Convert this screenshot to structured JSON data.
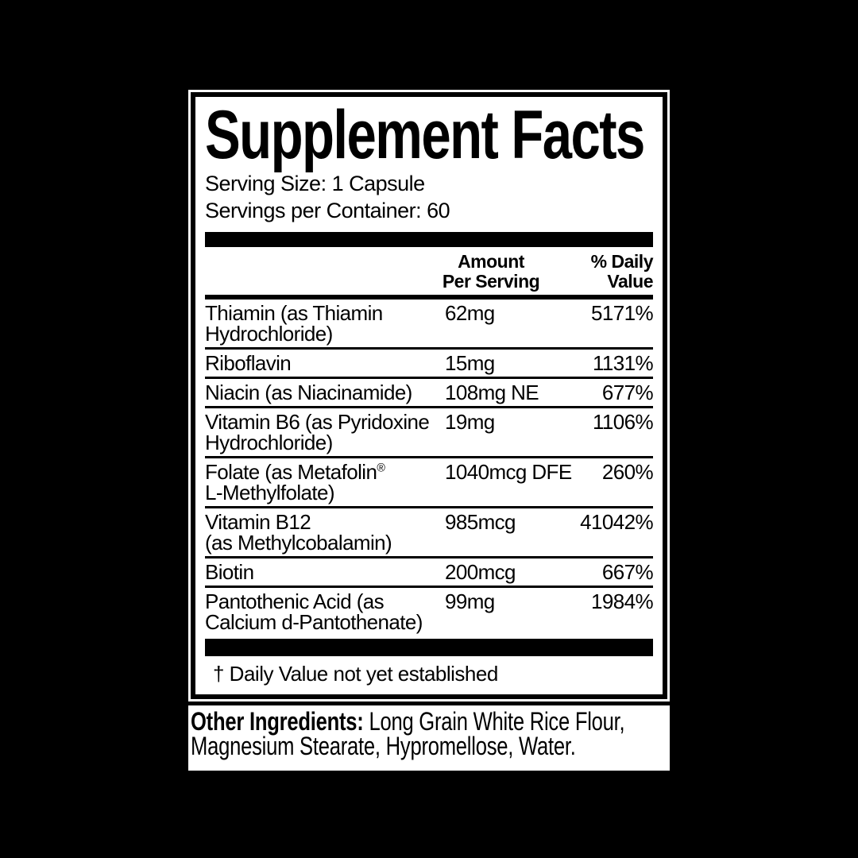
{
  "panel": {
    "title": "Supplement Facts",
    "serving_size": "Serving Size: 1 Capsule",
    "servings_per_container": "Servings per Container: 60",
    "table": {
      "headers": {
        "amount_line1": "Amount",
        "amount_line2": "Per Serving",
        "dv_line1": "% Daily",
        "dv_line2": "Value"
      },
      "rows": [
        {
          "line1": "Thiamin (as Thiamin",
          "sup": "",
          "line2": "Hydrochloride)",
          "amount": "62mg",
          "dv": "5171%"
        },
        {
          "line1": "Riboflavin",
          "sup": "",
          "line2": "",
          "amount": "15mg",
          "dv": "1131%"
        },
        {
          "line1": "Niacin (as Niacinamide)",
          "sup": "",
          "line2": "",
          "amount": "108mg NE",
          "dv": "677%"
        },
        {
          "line1": "Vitamin B6 (as Pyridoxine",
          "sup": "",
          "line2": "Hydrochloride)",
          "amount": "19mg",
          "dv": "1106%"
        },
        {
          "line1": "Folate (as Metafolin",
          "sup": "®",
          "line2": "L-Methylfolate)",
          "amount": "1040mcg DFE",
          "dv": "260%"
        },
        {
          "line1": "Vitamin B12",
          "sup": "",
          "line2": "(as Methylcobalamin)",
          "amount": "985mcg",
          "dv": "41042%"
        },
        {
          "line1": "Biotin",
          "sup": "",
          "line2": "",
          "amount": "200mcg",
          "dv": "667%"
        },
        {
          "line1": "Pantothenic Acid (as",
          "sup": "",
          "line2": "Calcium d-Pantothenate)",
          "amount": "99mg",
          "dv": "1984%"
        }
      ]
    },
    "footnote": "† Daily Value not yet established"
  },
  "other_ingredients": {
    "label": "Other Ingredients:",
    "text": " Long Grain White Rice Flour, Magnesium Stearate, Hypromellose, Water."
  },
  "colors": {
    "background": "#000000",
    "panel_bg": "#ffffff",
    "text": "#000000"
  }
}
